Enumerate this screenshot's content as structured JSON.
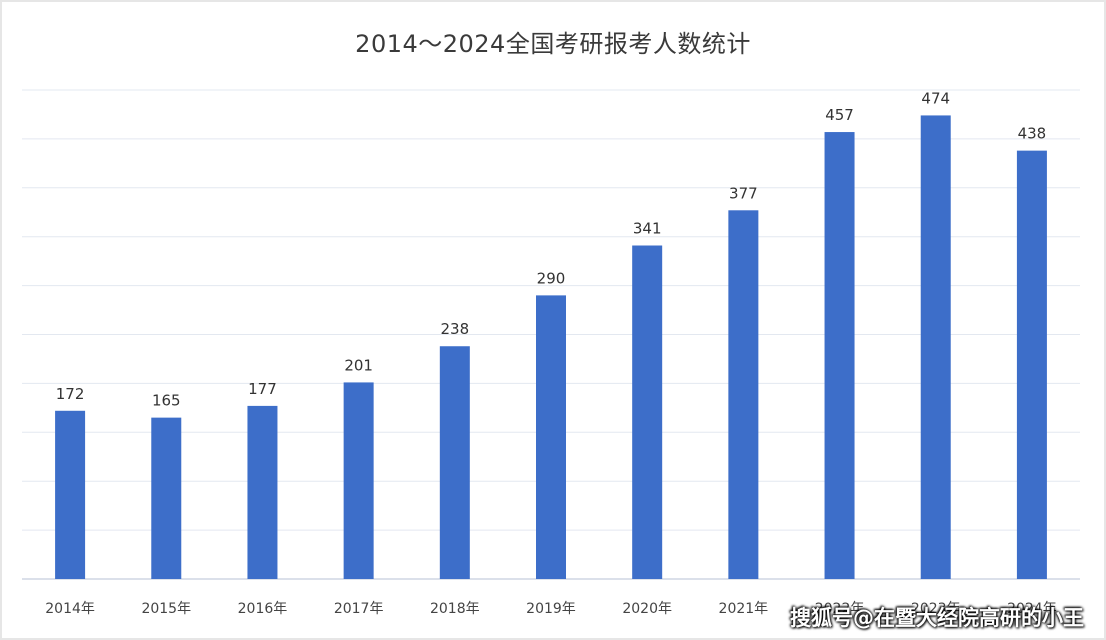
{
  "chart_data": {
    "type": "bar",
    "title": "2014～2024全国考研报考人数统计",
    "categories": [
      "2014年",
      "2015年",
      "2016年",
      "2017年",
      "2018年",
      "2019年",
      "2020年",
      "2021年",
      "2022年",
      "2023年",
      "2024年"
    ],
    "values": [
      172,
      165,
      177,
      201,
      238,
      290,
      341,
      377,
      457,
      474,
      438
    ],
    "xlabel": "",
    "ylabel": "",
    "ylim": [
      0,
      500
    ],
    "grid": true,
    "legend": "none",
    "bar_color": "#3d6ec9"
  },
  "watermark": "搜狐号@在暨大经院高研的小王"
}
